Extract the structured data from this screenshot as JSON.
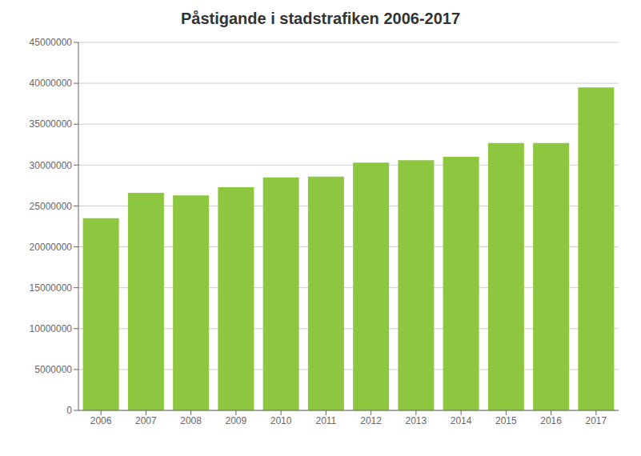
{
  "chart_data": {
    "type": "bar",
    "title": "Påstigande i stadstrafiken 2006-2017",
    "categories": [
      "2006",
      "2007",
      "2008",
      "2009",
      "2010",
      "2011",
      "2012",
      "2013",
      "2014",
      "2015",
      "2016",
      "2017"
    ],
    "values": [
      23500000,
      26600000,
      26300000,
      27300000,
      28500000,
      28600000,
      30300000,
      30600000,
      31000000,
      32700000,
      32700000,
      39500000
    ],
    "color": "#8DC63F",
    "ylim": [
      0,
      45000000
    ],
    "yticks": [
      0,
      5000000,
      10000000,
      15000000,
      20000000,
      25000000,
      30000000,
      35000000,
      40000000,
      45000000
    ],
    "grid": true
  }
}
